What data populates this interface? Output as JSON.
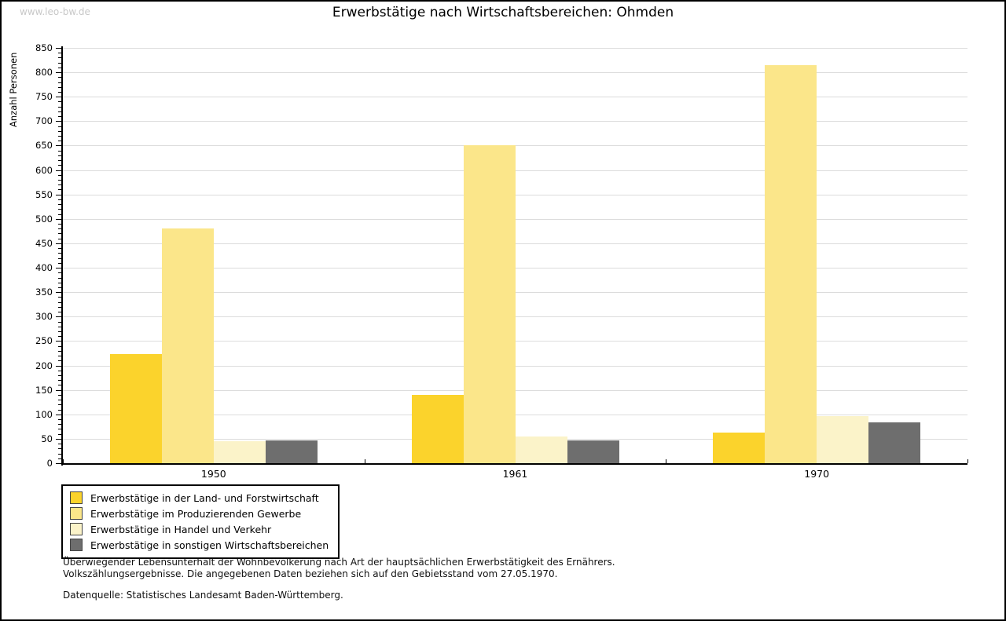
{
  "watermark": "www.leo-bw.de",
  "title": "Erwerbstätige nach Wirtschaftsbereichen: Ohmden",
  "colors": {
    "gridline": "#dcdcdc",
    "axis": "#000000",
    "watermark": "#c8c8c8",
    "background": "#ffffff"
  },
  "chart_data": {
    "type": "bar",
    "title": "Erwerbstätige nach Wirtschaftsbereichen: Ohmden",
    "categories": [
      "1950",
      "1961",
      "1970"
    ],
    "series": [
      {
        "name": "Erwerbstätige in der Land- und Forstwirtschaft",
        "color": "#FBD32C",
        "values": [
          223,
          140,
          63
        ]
      },
      {
        "name": "Erwerbstätige im Produzierenden Gewerbe",
        "color": "#FBE68A",
        "values": [
          480,
          650,
          815
        ]
      },
      {
        "name": "Erwerbstätige in Handel und Verkehr",
        "color": "#FBF3C9",
        "values": [
          45,
          55,
          97
        ]
      },
      {
        "name": "Erwerbstätige in sonstigen Wirtschaftsbereichen",
        "color": "#6E6E6E",
        "values": [
          47,
          47,
          83
        ]
      }
    ],
    "xlabel": "",
    "ylabel": "Anzahl Personen",
    "ylim": [
      0,
      850
    ],
    "ytick_step": 50,
    "minor_tick_step": 10,
    "grid": true,
    "legend_position": "bottom-left"
  },
  "footer": {
    "line1": "Überwiegender Lebensunterhalt der Wohnbevölkerung nach Art der hauptsächlichen Erwerbstätigkeit des Ernährers.",
    "line2": "Volkszählungsergebnisse. Die angegebenen Daten beziehen sich auf den Gebietsstand vom 27.05.1970.",
    "source": "Datenquelle: Statistisches Landesamt Baden-Württemberg."
  }
}
